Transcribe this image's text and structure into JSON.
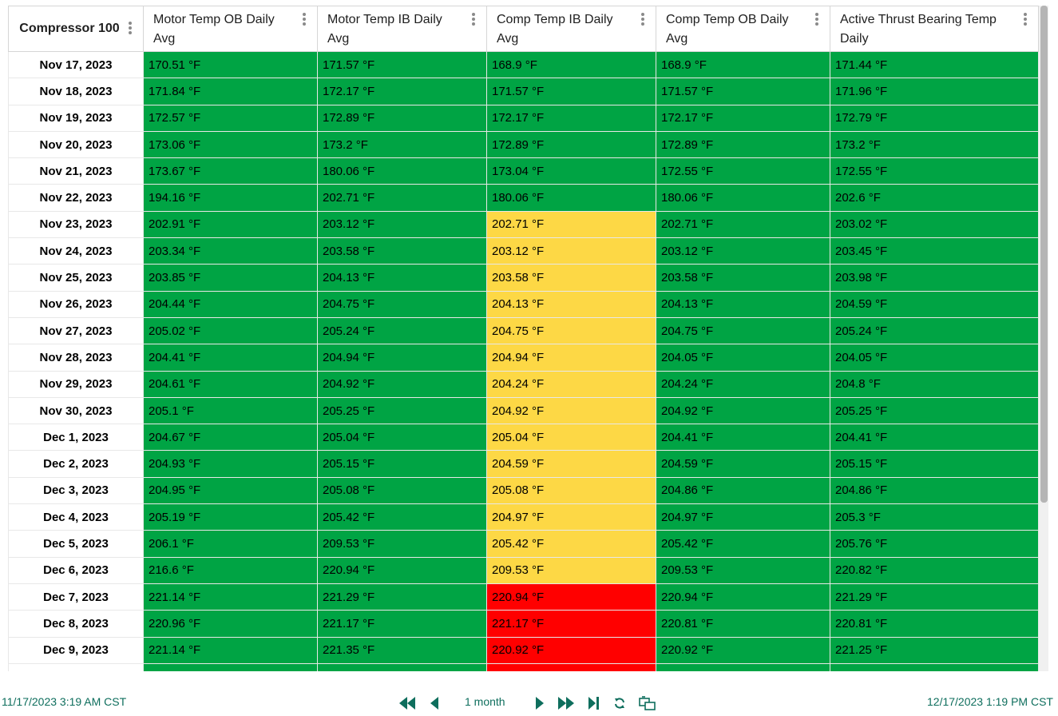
{
  "table": {
    "corner_header": "Compressor 100",
    "columns": [
      "Motor Temp OB Daily Avg",
      "Motor Temp IB Daily Avg",
      "Comp Temp IB Daily Avg",
      "Comp Temp OB Daily Avg",
      "Active Thrust Bearing Temp Daily"
    ],
    "status_colors": {
      "green": "#00a444",
      "yellow": "#fdd845",
      "red": "#ff0000"
    },
    "rows": [
      {
        "date": "Nov 17, 2023",
        "cells": [
          [
            "170.51 °F",
            "green"
          ],
          [
            "171.57 °F",
            "green"
          ],
          [
            "168.9 °F",
            "green"
          ],
          [
            "168.9 °F",
            "green"
          ],
          [
            "171.44 °F",
            "green"
          ]
        ]
      },
      {
        "date": "Nov 18, 2023",
        "cells": [
          [
            "171.84 °F",
            "green"
          ],
          [
            "172.17 °F",
            "green"
          ],
          [
            "171.57 °F",
            "green"
          ],
          [
            "171.57 °F",
            "green"
          ],
          [
            "171.96 °F",
            "green"
          ]
        ]
      },
      {
        "date": "Nov 19, 2023",
        "cells": [
          [
            "172.57 °F",
            "green"
          ],
          [
            "172.89 °F",
            "green"
          ],
          [
            "172.17 °F",
            "green"
          ],
          [
            "172.17 °F",
            "green"
          ],
          [
            "172.79 °F",
            "green"
          ]
        ]
      },
      {
        "date": "Nov 20, 2023",
        "cells": [
          [
            "173.06 °F",
            "green"
          ],
          [
            "173.2 °F",
            "green"
          ],
          [
            "172.89 °F",
            "green"
          ],
          [
            "172.89 °F",
            "green"
          ],
          [
            "173.2 °F",
            "green"
          ]
        ]
      },
      {
        "date": "Nov 21, 2023",
        "cells": [
          [
            "173.67 °F",
            "green"
          ],
          [
            "180.06 °F",
            "green"
          ],
          [
            "173.04 °F",
            "green"
          ],
          [
            "172.55 °F",
            "green"
          ],
          [
            "172.55 °F",
            "green"
          ]
        ]
      },
      {
        "date": "Nov 22, 2023",
        "cells": [
          [
            "194.16 °F",
            "green"
          ],
          [
            "202.71 °F",
            "green"
          ],
          [
            "180.06 °F",
            "green"
          ],
          [
            "180.06 °F",
            "green"
          ],
          [
            "202.6 °F",
            "green"
          ]
        ]
      },
      {
        "date": "Nov 23, 2023",
        "cells": [
          [
            "202.91 °F",
            "green"
          ],
          [
            "203.12 °F",
            "green"
          ],
          [
            "202.71 °F",
            "yellow"
          ],
          [
            "202.71 °F",
            "green"
          ],
          [
            "203.02 °F",
            "green"
          ]
        ]
      },
      {
        "date": "Nov 24, 2023",
        "cells": [
          [
            "203.34 °F",
            "green"
          ],
          [
            "203.58 °F",
            "green"
          ],
          [
            "203.12 °F",
            "yellow"
          ],
          [
            "203.12 °F",
            "green"
          ],
          [
            "203.45 °F",
            "green"
          ]
        ]
      },
      {
        "date": "Nov 25, 2023",
        "cells": [
          [
            "203.85 °F",
            "green"
          ],
          [
            "204.13 °F",
            "green"
          ],
          [
            "203.58 °F",
            "yellow"
          ],
          [
            "203.58 °F",
            "green"
          ],
          [
            "203.98 °F",
            "green"
          ]
        ]
      },
      {
        "date": "Nov 26, 2023",
        "cells": [
          [
            "204.44 °F",
            "green"
          ],
          [
            "204.75 °F",
            "green"
          ],
          [
            "204.13 °F",
            "yellow"
          ],
          [
            "204.13 °F",
            "green"
          ],
          [
            "204.59 °F",
            "green"
          ]
        ]
      },
      {
        "date": "Nov 27, 2023",
        "cells": [
          [
            "205.02 °F",
            "green"
          ],
          [
            "205.24 °F",
            "green"
          ],
          [
            "204.75 °F",
            "yellow"
          ],
          [
            "204.75 °F",
            "green"
          ],
          [
            "205.24 °F",
            "green"
          ]
        ]
      },
      {
        "date": "Nov 28, 2023",
        "cells": [
          [
            "204.41 °F",
            "green"
          ],
          [
            "204.94 °F",
            "green"
          ],
          [
            "204.94 °F",
            "yellow"
          ],
          [
            "204.05 °F",
            "green"
          ],
          [
            "204.05 °F",
            "green"
          ]
        ]
      },
      {
        "date": "Nov 29, 2023",
        "cells": [
          [
            "204.61 °F",
            "green"
          ],
          [
            "204.92 °F",
            "green"
          ],
          [
            "204.24 °F",
            "yellow"
          ],
          [
            "204.24 °F",
            "green"
          ],
          [
            "204.8 °F",
            "green"
          ]
        ]
      },
      {
        "date": "Nov 30, 2023",
        "cells": [
          [
            "205.1 °F",
            "green"
          ],
          [
            "205.25 °F",
            "green"
          ],
          [
            "204.92 °F",
            "yellow"
          ],
          [
            "204.92 °F",
            "green"
          ],
          [
            "205.25 °F",
            "green"
          ]
        ]
      },
      {
        "date": "Dec 1, 2023",
        "cells": [
          [
            "204.67 °F",
            "green"
          ],
          [
            "205.04 °F",
            "green"
          ],
          [
            "205.04 °F",
            "yellow"
          ],
          [
            "204.41 °F",
            "green"
          ],
          [
            "204.41 °F",
            "green"
          ]
        ]
      },
      {
        "date": "Dec 2, 2023",
        "cells": [
          [
            "204.93 °F",
            "green"
          ],
          [
            "205.15 °F",
            "green"
          ],
          [
            "204.59 °F",
            "yellow"
          ],
          [
            "204.59 °F",
            "green"
          ],
          [
            "205.15 °F",
            "green"
          ]
        ]
      },
      {
        "date": "Dec 3, 2023",
        "cells": [
          [
            "204.95 °F",
            "green"
          ],
          [
            "205.08 °F",
            "green"
          ],
          [
            "205.08 °F",
            "yellow"
          ],
          [
            "204.86 °F",
            "green"
          ],
          [
            "204.86 °F",
            "green"
          ]
        ]
      },
      {
        "date": "Dec 4, 2023",
        "cells": [
          [
            "205.19 °F",
            "green"
          ],
          [
            "205.42 °F",
            "green"
          ],
          [
            "204.97 °F",
            "yellow"
          ],
          [
            "204.97 °F",
            "green"
          ],
          [
            "205.3 °F",
            "green"
          ]
        ]
      },
      {
        "date": "Dec 5, 2023",
        "cells": [
          [
            "206.1 °F",
            "green"
          ],
          [
            "209.53 °F",
            "green"
          ],
          [
            "205.42 °F",
            "yellow"
          ],
          [
            "205.42 °F",
            "green"
          ],
          [
            "205.76 °F",
            "green"
          ]
        ]
      },
      {
        "date": "Dec 6, 2023",
        "cells": [
          [
            "216.6 °F",
            "green"
          ],
          [
            "220.94 °F",
            "green"
          ],
          [
            "209.53 °F",
            "yellow"
          ],
          [
            "209.53 °F",
            "green"
          ],
          [
            "220.82 °F",
            "green"
          ]
        ]
      },
      {
        "date": "Dec 7, 2023",
        "cells": [
          [
            "221.14 °F",
            "green"
          ],
          [
            "221.29 °F",
            "green"
          ],
          [
            "220.94 °F",
            "red"
          ],
          [
            "220.94 °F",
            "green"
          ],
          [
            "221.29 °F",
            "green"
          ]
        ]
      },
      {
        "date": "Dec 8, 2023",
        "cells": [
          [
            "220.96 °F",
            "green"
          ],
          [
            "221.17 °F",
            "green"
          ],
          [
            "221.17 °F",
            "red"
          ],
          [
            "220.81 °F",
            "green"
          ],
          [
            "220.81 °F",
            "green"
          ]
        ]
      },
      {
        "date": "Dec 9, 2023",
        "cells": [
          [
            "221.14 °F",
            "green"
          ],
          [
            "221.35 °F",
            "green"
          ],
          [
            "220.92 °F",
            "red"
          ],
          [
            "220.92 °F",
            "green"
          ],
          [
            "221.25 °F",
            "green"
          ]
        ]
      },
      {
        "date": "",
        "cells": [
          [
            "",
            "green"
          ],
          [
            "",
            "green"
          ],
          [
            "",
            "red"
          ],
          [
            "",
            "green"
          ],
          [
            "",
            "green"
          ]
        ]
      }
    ]
  },
  "footer": {
    "start_time": "11/17/2023 3:19 AM  CST",
    "end_time": "12/17/2023 1:19 PM  CST",
    "range_label": "1 month",
    "icons": [
      "fast-rewind-icon",
      "step-back-icon",
      "step-forward-icon",
      "fast-forward-icon",
      "skip-to-end-icon",
      "refresh-icon",
      "export-icon"
    ]
  }
}
